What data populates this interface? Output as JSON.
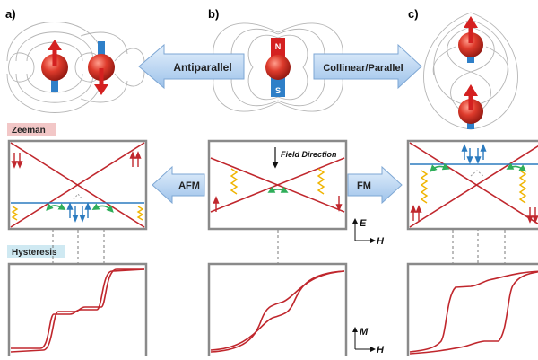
{
  "panels": {
    "a": "a)",
    "b": "b)",
    "c": "c)"
  },
  "arrows": {
    "antiparallel": "Antiparallel",
    "collinear": "Collinear/Parallel",
    "afm": "AFM",
    "fm": "FM"
  },
  "magnet": {
    "north": "N",
    "south": "S"
  },
  "sections": {
    "zeeman": "Zeeman",
    "hysteresis": "Hysteresis"
  },
  "annotations": {
    "field_direction": "Field Direction"
  },
  "axes": {
    "energy": "E",
    "field_h": "H",
    "magnetization": "M"
  },
  "colors": {
    "sphere": "#d63a2e",
    "spin_arrow": "#d42020",
    "magnet_blue": "#2e7fc8",
    "level_red": "#c0272d",
    "level_blue": "#2b7bbf",
    "tunnel": "#f0b400",
    "transition": "#2fae5a",
    "big_arrow": "#aecdf0",
    "zeeman_bg": "#f2c7c7",
    "hysteresis_bg": "#cfe9f2",
    "frame": "#8a8a8a"
  }
}
